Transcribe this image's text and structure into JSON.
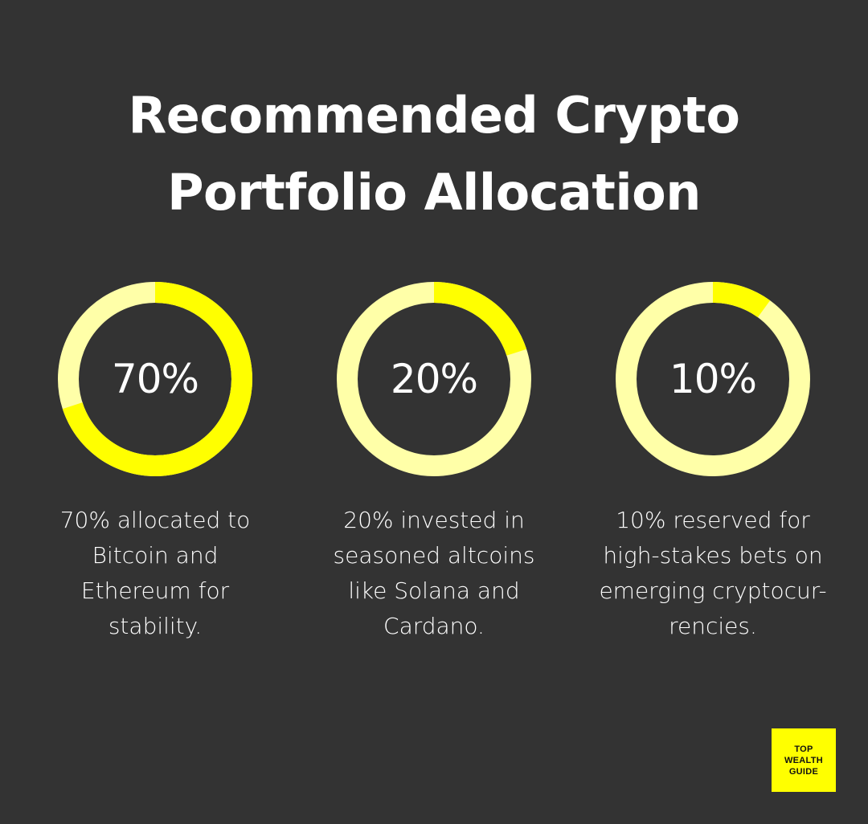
{
  "title": {
    "line1": "Recommended Crypto",
    "line2": "Portfolio Allocation"
  },
  "colors": {
    "background": "#333333",
    "accent": "#ffff00",
    "track": "#ffffa8",
    "text": "#ffffff"
  },
  "chart_data": [
    {
      "type": "pie",
      "value": 70,
      "label": "70%",
      "description": [
        "70% allocated to",
        "Bitcoin and",
        "Ethereum for",
        "stability."
      ]
    },
    {
      "type": "pie",
      "value": 20,
      "label": "20%",
      "description": [
        "20% invested in",
        "seasoned altcoins",
        "like Solana and",
        "Cardano."
      ]
    },
    {
      "type": "pie",
      "value": 10,
      "label": "10%",
      "description": [
        "10% reserved for",
        "high-stakes bets on",
        "emerging cryptocur-",
        "rencies."
      ]
    }
  ],
  "logo": {
    "line1": "TOP",
    "line2": "WEALTH",
    "line3": "GUIDE"
  }
}
